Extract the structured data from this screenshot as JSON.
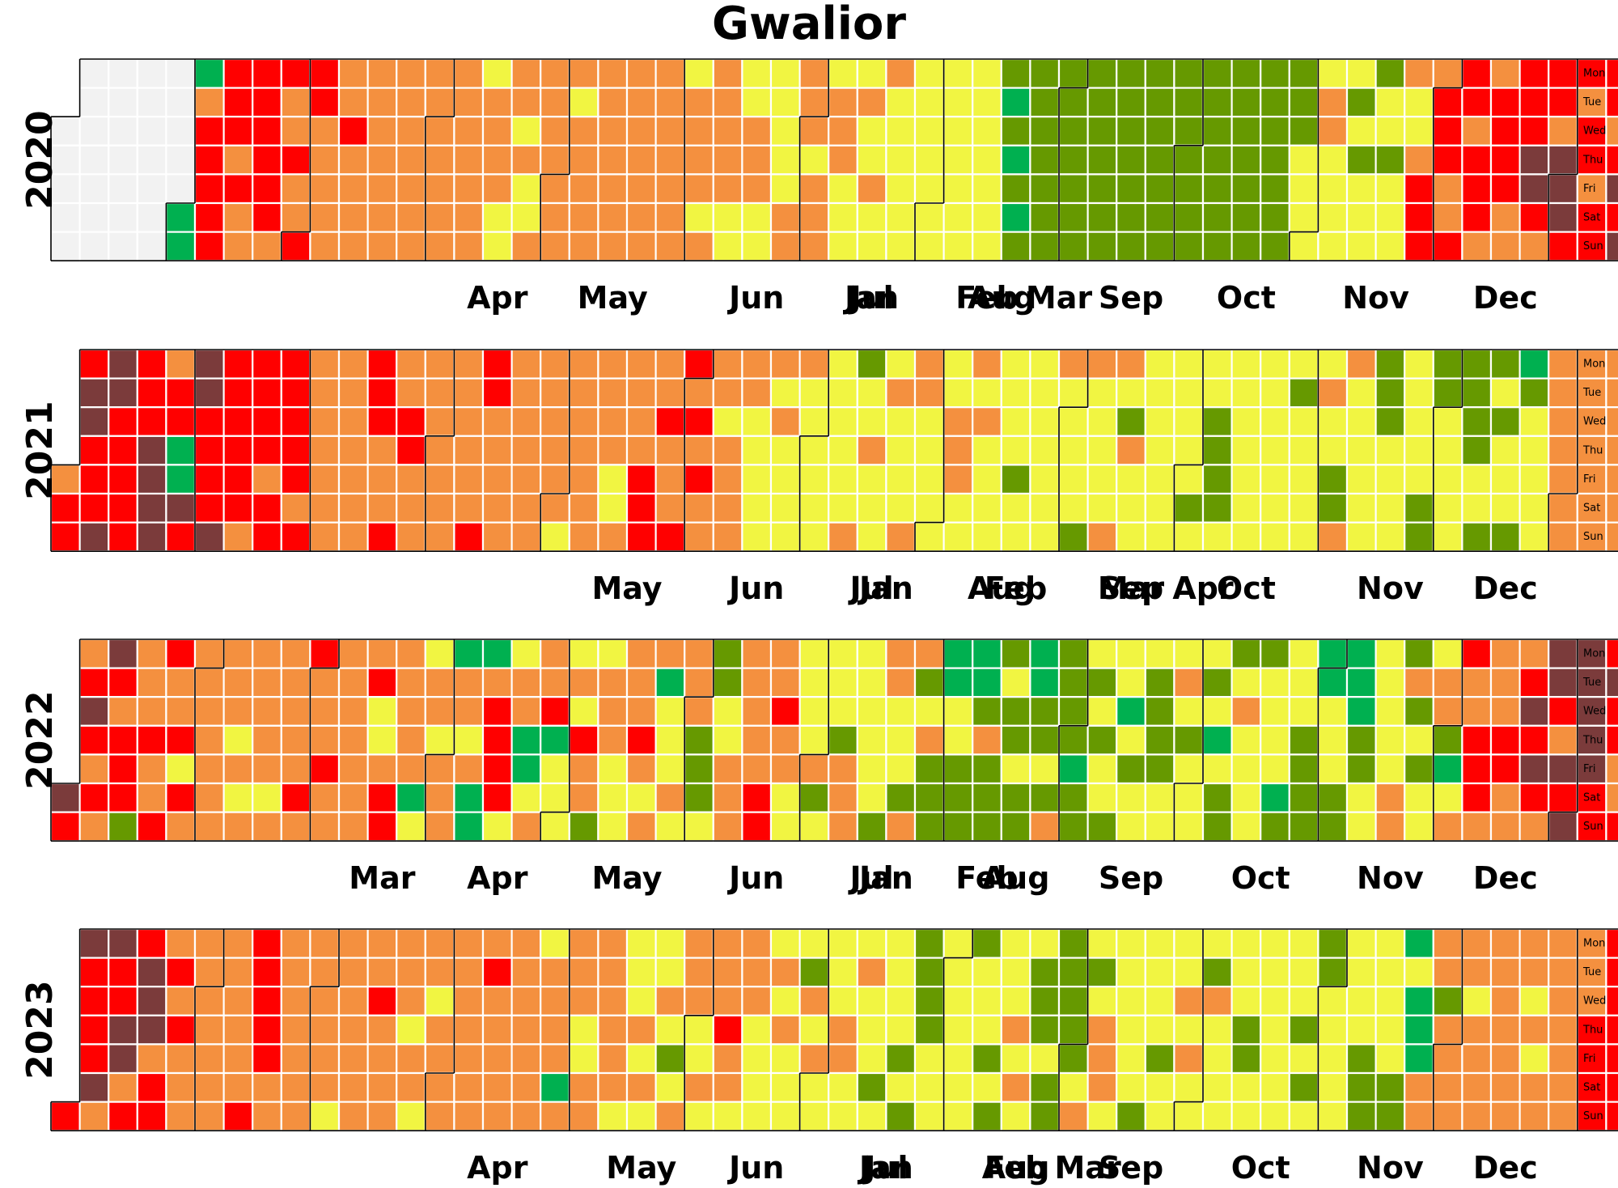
{
  "chart_data": {
    "type": "heatmap",
    "subtype": "calendar",
    "title": "Gwalior",
    "weekday_labels": [
      "Mon",
      "Tue",
      "Wed",
      "Thu",
      "Fri",
      "Sat",
      "Sun"
    ],
    "month_labels": [
      "Jan",
      "Feb",
      "Mar",
      "Apr",
      "May",
      "Jun",
      "Jul",
      "Aug",
      "Sep",
      "Oct",
      "Nov",
      "Dec"
    ],
    "grid": false,
    "legend": "none",
    "colors": {
      "no_data": "#f2f2f2",
      "level_0": "#00b050",
      "level_1": "#669900",
      "level_2": "#f1f542",
      "level_3": "#f4903f",
      "level_4": "#ff0000",
      "level_5": "#7b3b3b",
      "cell_border": "#ffffff",
      "month_outline": "#000000"
    },
    "years": [
      {
        "year": "2020",
        "days": [
          "0000000000000000000000000000000000344444444343344444434334334443333333433333333333333333333333333333333233332233232233333333323333333333333333333333333323333233333322223332222222333",
          "33233323332222322322322222222222222222222222222210101011111111111111111111111111111111111111111111111111111111111111111112222233222221212221221222322344434443344434443344443",
          "34445543443555443443444434545534344445545434455535445444455545444555445555442"
        ]
      },
      {
        "year": "2021",
        "days": [
          "344455444555444444445555344005455444454444443444434444444343333333333333344433343344333333333333333344433333333333333333323333333333322333334443343334434343333233333322222323222",
          "23222222222222312232222322223332222222333223232222222212222222223222221322222332132222222222222221222111122222222222222221222222322113322222211122222222211112222211112211212221",
          "01222223333333333333333333333333334355433335544454543435444333333433333343335543344433333333334333444445444"
        ]
      },
      {
        "year": "2022",
        "days": [
          "5434543435434441333433443342433333333333232333333233333343433343333333333422344333330223323330332300034444223300233340222232433123332223334323302223233311121122333333334433433222222",
          "31222213332222221332221331231110022111001311112112110011213111101121212212202122211112223212222120211123222212222012221111002221100011222222233131212223310234334443333443334",
          "54543554354555555444544334444545445554544445555444545555555"
        ]
      },
      {
        "year": "2023",
        "days": [
          "4544445354455344555344343433333333333333334444443333333333333332333333333433333332332332333333333333433333333333323333033332233333333222232322232123333223233343323332222232322221",
          "32322222332223222122222121111122222222221222121222323221112111111123212333222222212222122223232221322222221122222222222212121122222222211122222110200033331333333233333333333332",
          "3233333333333344444444444444444444444454444444444344534434444445344444454434554"
        ]
      }
    ]
  }
}
